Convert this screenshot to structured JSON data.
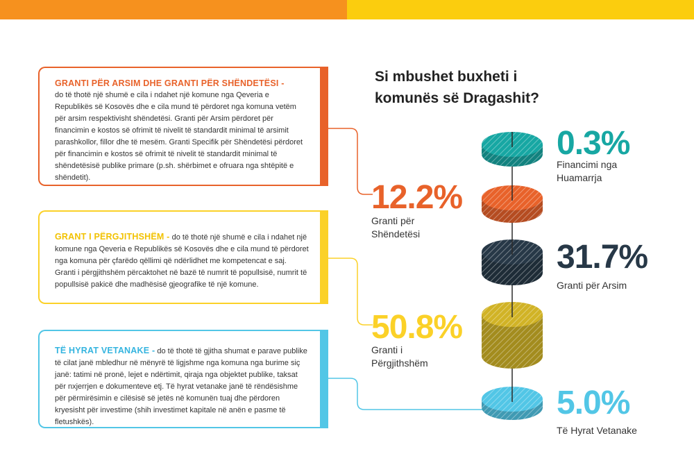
{
  "colors": {
    "orange": "#e8622a",
    "yellow": "#fbd128",
    "blue": "#52c6e6",
    "teal": "#17a7a3",
    "navy": "#273847",
    "gold": "#d1b326",
    "topbar_left": "#f6911e",
    "topbar_right": "#fbcd0e"
  },
  "title": "Si mbushet buxheti i komunës së Dragashit?",
  "cards": [
    {
      "heading": "GRANTI PËR ARSIM DHE GRANTI PËR SHËNDETËSI -",
      "body": "do të thotë një shumë e cila i ndahet një komune nga Qeveria e Republikës së Kosovës dhe e cila mund të përdoret nga komuna vetëm për arsim respektivisht shëndetësi. Granti për Arsim përdoret për financimin e kostos së ofrimit të nivelit të standardit minimal të arsimit parashkollor, fillor dhe të mesëm. Granti Specifik për Shëndetësi përdoret për financimin e kostos së ofrimit të nivelit të standardit minimal të shëndetësisë publike primare (p.sh. shërbimet e ofruara nga shtëpitë e shëndetit)."
    },
    {
      "heading": "GRANT I PËRGJITHSHËM -",
      "body": "do të thotë një shumë e cila i ndahet një komune nga Qeveria e Republikës së Kosovës dhe e cila mund të përdoret nga komuna për çfarëdo qëllimi që ndërlidhet me kompetencat e saj. Granti i përgjithshëm përcaktohet në bazë të numrit të popullsisë, numrit të popullsisë pakicë dhe madhësisë gjeografike të një komune."
    },
    {
      "heading": "TË HYRAT VETANAKE -",
      "body": "do të thotë të gjitha shumat e parave publike të cilat janë mbledhur në mënyrë të ligjshme nga komuna nga burime siç janë: tatimi në pronë, lejet e ndërtimit, qiraja nga objektet publike, taksat për nxjerrjen e dokumenteve etj. Të hyrat vetanake janë të rëndësishme për përmirësimin e cilësisë së jetës në komunën tuaj dhe përdoren kryesisht për investime (shih investimet kapitale në anën e pasme të fletushkës)."
    }
  ],
  "chart_data": {
    "type": "stacked-disc",
    "series": [
      {
        "label": "Financimi nga Huamarrja",
        "value": 0.3,
        "display": "0.3%",
        "color": "#17a7a3"
      },
      {
        "label": "Granti për Shëndetësi",
        "value": 12.2,
        "display": "12.2%",
        "color": "#e8622a"
      },
      {
        "label": "Granti për Arsim",
        "value": 31.7,
        "display": "31.7%",
        "color": "#273847"
      },
      {
        "label": "Granti i Përgjithshëm",
        "value": 50.8,
        "display": "50.8%",
        "color": "#d1b326"
      },
      {
        "label": "Të Hyrat Vetanake",
        "value": 5.0,
        "display": "5.0%",
        "color": "#52c6e6"
      }
    ]
  }
}
